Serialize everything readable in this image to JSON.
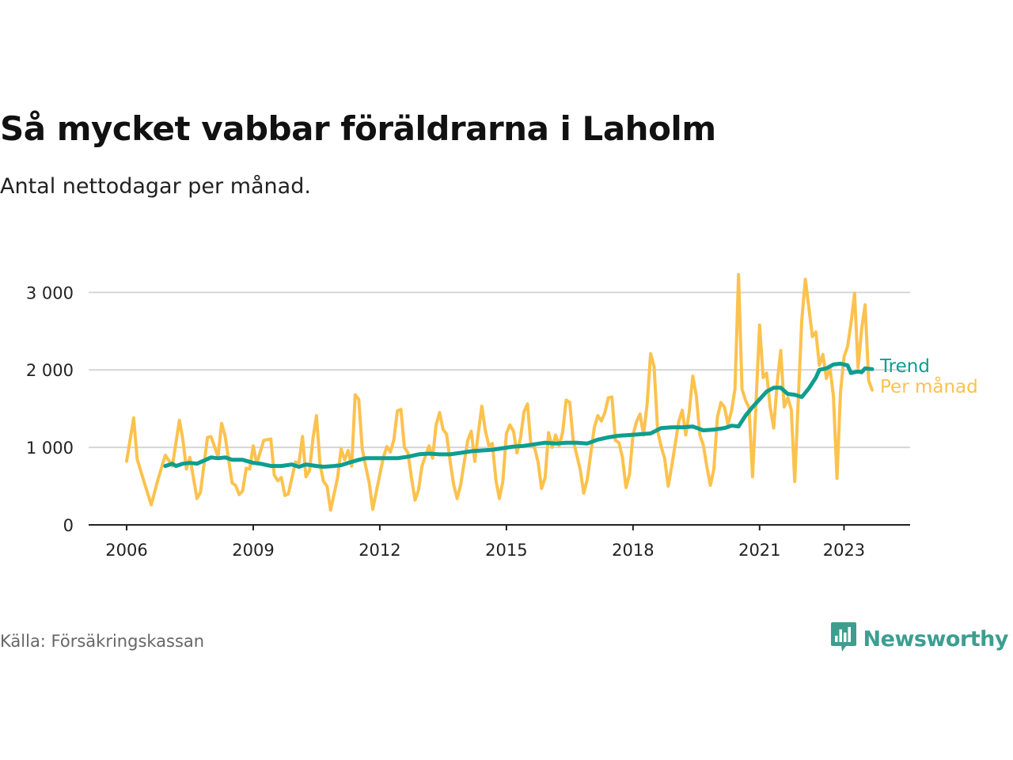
{
  "title": "Så mycket vabbar föräldrarna i Laholm",
  "subtitle": "Antal nettodagar per månad.",
  "source": "Källa: Försäkringskassan",
  "brand": {
    "name": "Newsworthy",
    "icon": "newsworthy-logo-icon",
    "color": "#3d9e90"
  },
  "chart_data": {
    "type": "line",
    "title": "Så mycket vabbar föräldrarna i Laholm",
    "subtitle": "Antal nettodagar per månad.",
    "xlabel": "",
    "ylabel": "",
    "x_ticks": [
      "2006",
      "2009",
      "2012",
      "2015",
      "2018",
      "2021",
      "2023"
    ],
    "y_ticks": [
      "0",
      "1 000",
      "2 000",
      "3 000"
    ],
    "ylim": [
      0,
      3300
    ],
    "xlim": [
      "2006-01",
      "2023-12"
    ],
    "grid": "horizontal",
    "legend": "right-end labels",
    "series": [
      {
        "name": "Per månad",
        "color": "#fcc24e",
        "points": [
          [
            "2006-01",
            820
          ],
          [
            "2006-03",
            1380
          ],
          [
            "2006-04",
            850
          ],
          [
            "2006-06",
            550
          ],
          [
            "2006-08",
            260
          ],
          [
            "2006-10",
            600
          ],
          [
            "2006-12",
            900
          ],
          [
            "2007-02",
            760
          ],
          [
            "2007-04",
            1350
          ],
          [
            "2007-05",
            1100
          ],
          [
            "2007-06",
            720
          ],
          [
            "2007-07",
            870
          ],
          [
            "2007-09",
            340
          ],
          [
            "2007-10",
            420
          ],
          [
            "2007-12",
            1130
          ],
          [
            "2008-01",
            1140
          ],
          [
            "2008-03",
            880
          ],
          [
            "2008-04",
            1310
          ],
          [
            "2008-05",
            1150
          ],
          [
            "2008-07",
            540
          ],
          [
            "2008-08",
            510
          ],
          [
            "2008-09",
            390
          ],
          [
            "2008-10",
            440
          ],
          [
            "2008-11",
            730
          ],
          [
            "2008-12",
            720
          ],
          [
            "2009-01",
            1020
          ],
          [
            "2009-02",
            790
          ],
          [
            "2009-04",
            1090
          ],
          [
            "2009-06",
            1110
          ],
          [
            "2009-07",
            640
          ],
          [
            "2009-08",
            570
          ],
          [
            "2009-09",
            610
          ],
          [
            "2009-10",
            380
          ],
          [
            "2009-11",
            400
          ],
          [
            "2010-01",
            810
          ],
          [
            "2010-02",
            800
          ],
          [
            "2010-03",
            1140
          ],
          [
            "2010-04",
            620
          ],
          [
            "2010-05",
            700
          ],
          [
            "2010-06",
            1120
          ],
          [
            "2010-07",
            1410
          ],
          [
            "2010-08",
            780
          ],
          [
            "2010-09",
            560
          ],
          [
            "2010-10",
            500
          ],
          [
            "2010-11",
            190
          ],
          [
            "2011-01",
            610
          ],
          [
            "2011-02",
            980
          ],
          [
            "2011-03",
            840
          ],
          [
            "2011-04",
            960
          ],
          [
            "2011-05",
            760
          ],
          [
            "2011-06",
            1680
          ],
          [
            "2011-07",
            1620
          ],
          [
            "2011-08",
            980
          ],
          [
            "2011-09",
            750
          ],
          [
            "2011-10",
            540
          ],
          [
            "2011-11",
            200
          ],
          [
            "2011-12",
            430
          ],
          [
            "2012-02",
            870
          ],
          [
            "2012-03",
            1010
          ],
          [
            "2012-04",
            940
          ],
          [
            "2012-05",
            1100
          ],
          [
            "2012-06",
            1470
          ],
          [
            "2012-07",
            1490
          ],
          [
            "2012-08",
            1000
          ],
          [
            "2012-09",
            930
          ],
          [
            "2012-10",
            610
          ],
          [
            "2012-11",
            320
          ],
          [
            "2012-12",
            450
          ],
          [
            "2013-01",
            760
          ],
          [
            "2013-03",
            1020
          ],
          [
            "2013-04",
            860
          ],
          [
            "2013-05",
            1290
          ],
          [
            "2013-06",
            1450
          ],
          [
            "2013-07",
            1230
          ],
          [
            "2013-08",
            1170
          ],
          [
            "2013-09",
            820
          ],
          [
            "2013-10",
            520
          ],
          [
            "2013-11",
            340
          ],
          [
            "2013-12",
            520
          ],
          [
            "2014-02",
            1090
          ],
          [
            "2014-03",
            1210
          ],
          [
            "2014-04",
            820
          ],
          [
            "2014-05",
            1180
          ],
          [
            "2014-06",
            1530
          ],
          [
            "2014-07",
            1220
          ],
          [
            "2014-08",
            1020
          ],
          [
            "2014-09",
            1050
          ],
          [
            "2014-10",
            580
          ],
          [
            "2014-11",
            340
          ],
          [
            "2014-12",
            560
          ],
          [
            "2015-01",
            1180
          ],
          [
            "2015-02",
            1290
          ],
          [
            "2015-03",
            1210
          ],
          [
            "2015-04",
            930
          ],
          [
            "2015-05",
            1120
          ],
          [
            "2015-06",
            1460
          ],
          [
            "2015-07",
            1560
          ],
          [
            "2015-08",
            1010
          ],
          [
            "2015-09",
            1000
          ],
          [
            "2015-10",
            810
          ],
          [
            "2015-11",
            470
          ],
          [
            "2015-12",
            610
          ],
          [
            "2016-01",
            1190
          ],
          [
            "2016-02",
            1000
          ],
          [
            "2016-03",
            1160
          ],
          [
            "2016-04",
            1020
          ],
          [
            "2016-05",
            1200
          ],
          [
            "2016-06",
            1610
          ],
          [
            "2016-07",
            1580
          ],
          [
            "2016-08",
            1090
          ],
          [
            "2016-09",
            900
          ],
          [
            "2016-10",
            710
          ],
          [
            "2016-11",
            410
          ],
          [
            "2016-12",
            590
          ],
          [
            "2017-02",
            1260
          ],
          [
            "2017-03",
            1410
          ],
          [
            "2017-04",
            1340
          ],
          [
            "2017-05",
            1450
          ],
          [
            "2017-06",
            1640
          ],
          [
            "2017-07",
            1650
          ],
          [
            "2017-08",
            1090
          ],
          [
            "2017-09",
            1060
          ],
          [
            "2017-10",
            870
          ],
          [
            "2017-11",
            480
          ],
          [
            "2017-12",
            650
          ],
          [
            "2018-01",
            1160
          ],
          [
            "2018-02",
            1330
          ],
          [
            "2018-03",
            1430
          ],
          [
            "2018-04",
            1160
          ],
          [
            "2018-05",
            1550
          ],
          [
            "2018-06",
            2210
          ],
          [
            "2018-07",
            2040
          ],
          [
            "2018-08",
            1210
          ],
          [
            "2018-09",
            1010
          ],
          [
            "2018-10",
            860
          ],
          [
            "2018-11",
            500
          ],
          [
            "2018-12",
            750
          ],
          [
            "2019-02",
            1330
          ],
          [
            "2019-03",
            1480
          ],
          [
            "2019-04",
            1160
          ],
          [
            "2019-05",
            1460
          ],
          [
            "2019-06",
            1920
          ],
          [
            "2019-07",
            1670
          ],
          [
            "2019-08",
            1160
          ],
          [
            "2019-09",
            1030
          ],
          [
            "2019-10",
            750
          ],
          [
            "2019-11",
            510
          ],
          [
            "2019-12",
            720
          ],
          [
            "2020-01",
            1390
          ],
          [
            "2020-02",
            1580
          ],
          [
            "2020-03",
            1520
          ],
          [
            "2020-04",
            1300
          ],
          [
            "2020-05",
            1470
          ],
          [
            "2020-06",
            1750
          ],
          [
            "2020-07",
            3230
          ],
          [
            "2020-08",
            1750
          ],
          [
            "2020-09",
            1610
          ],
          [
            "2020-10",
            1510
          ],
          [
            "2020-11",
            620
          ],
          [
            "2020-12",
            1600
          ],
          [
            "2021-01",
            2580
          ],
          [
            "2021-02",
            1900
          ],
          [
            "2021-03",
            1960
          ],
          [
            "2021-04",
            1520
          ],
          [
            "2021-05",
            1250
          ],
          [
            "2021-06",
            1830
          ],
          [
            "2021-07",
            2250
          ],
          [
            "2021-08",
            1520
          ],
          [
            "2021-09",
            1640
          ],
          [
            "2021-10",
            1490
          ],
          [
            "2021-11",
            560
          ],
          [
            "2021-12",
            1620
          ],
          [
            "2022-01",
            2640
          ],
          [
            "2022-02",
            3170
          ],
          [
            "2022-03",
            2810
          ],
          [
            "2022-04",
            2430
          ],
          [
            "2022-05",
            2490
          ],
          [
            "2022-06",
            2060
          ],
          [
            "2022-07",
            2200
          ],
          [
            "2022-08",
            1890
          ],
          [
            "2022-09",
            2030
          ],
          [
            "2022-10",
            1660
          ],
          [
            "2022-11",
            600
          ],
          [
            "2022-12",
            1710
          ],
          [
            "2023-01",
            2170
          ],
          [
            "2023-02",
            2300
          ],
          [
            "2023-03",
            2600
          ],
          [
            "2023-04",
            2990
          ],
          [
            "2023-05",
            2030
          ],
          [
            "2023-06",
            2520
          ],
          [
            "2023-07",
            2840
          ],
          [
            "2023-08",
            1860
          ],
          [
            "2023-09",
            1740
          ]
        ]
      },
      {
        "name": "Trend",
        "color": "#0e9e8f",
        "points": [
          [
            "2006-12",
            760
          ],
          [
            "2007-02",
            790
          ],
          [
            "2007-03",
            760
          ],
          [
            "2007-05",
            790
          ],
          [
            "2007-07",
            800
          ],
          [
            "2007-09",
            790
          ],
          [
            "2007-11",
            830
          ],
          [
            "2008-01",
            870
          ],
          [
            "2008-03",
            860
          ],
          [
            "2008-05",
            870
          ],
          [
            "2008-07",
            840
          ],
          [
            "2008-10",
            840
          ],
          [
            "2009-01",
            800
          ],
          [
            "2009-03",
            790
          ],
          [
            "2009-06",
            760
          ],
          [
            "2009-09",
            760
          ],
          [
            "2009-12",
            780
          ],
          [
            "2010-02",
            750
          ],
          [
            "2010-04",
            780
          ],
          [
            "2010-07",
            760
          ],
          [
            "2010-09",
            750
          ],
          [
            "2010-12",
            760
          ],
          [
            "2011-02",
            770
          ],
          [
            "2011-04",
            800
          ],
          [
            "2011-07",
            840
          ],
          [
            "2011-09",
            860
          ],
          [
            "2011-12",
            860
          ],
          [
            "2012-03",
            860
          ],
          [
            "2012-06",
            860
          ],
          [
            "2012-09",
            880
          ],
          [
            "2012-12",
            910
          ],
          [
            "2013-03",
            920
          ],
          [
            "2013-06",
            910
          ],
          [
            "2013-09",
            910
          ],
          [
            "2013-12",
            930
          ],
          [
            "2014-03",
            950
          ],
          [
            "2014-06",
            960
          ],
          [
            "2014-09",
            970
          ],
          [
            "2014-12",
            990
          ],
          [
            "2015-03",
            1010
          ],
          [
            "2015-06",
            1020
          ],
          [
            "2015-09",
            1040
          ],
          [
            "2015-12",
            1060
          ],
          [
            "2016-03",
            1050
          ],
          [
            "2016-06",
            1060
          ],
          [
            "2016-09",
            1060
          ],
          [
            "2016-12",
            1050
          ],
          [
            "2017-03",
            1100
          ],
          [
            "2017-06",
            1130
          ],
          [
            "2017-09",
            1150
          ],
          [
            "2017-12",
            1160
          ],
          [
            "2018-03",
            1170
          ],
          [
            "2018-06",
            1180
          ],
          [
            "2018-09",
            1250
          ],
          [
            "2018-12",
            1260
          ],
          [
            "2019-03",
            1260
          ],
          [
            "2019-06",
            1270
          ],
          [
            "2019-09",
            1220
          ],
          [
            "2019-12",
            1230
          ],
          [
            "2020-03",
            1250
          ],
          [
            "2020-05",
            1280
          ],
          [
            "2020-07",
            1270
          ],
          [
            "2020-09",
            1410
          ],
          [
            "2020-11",
            1520
          ],
          [
            "2021-01",
            1620
          ],
          [
            "2021-03",
            1720
          ],
          [
            "2021-05",
            1770
          ],
          [
            "2021-07",
            1770
          ],
          [
            "2021-09",
            1690
          ],
          [
            "2021-11",
            1680
          ],
          [
            "2022-01",
            1650
          ],
          [
            "2022-03",
            1760
          ],
          [
            "2022-05",
            1900
          ],
          [
            "2022-06",
            2000
          ],
          [
            "2022-08",
            2020
          ],
          [
            "2022-10",
            2070
          ],
          [
            "2022-12",
            2080
          ],
          [
            "2023-02",
            2060
          ],
          [
            "2023-03",
            1960
          ],
          [
            "2023-05",
            1980
          ],
          [
            "2023-06",
            1970
          ],
          [
            "2023-07",
            2020
          ],
          [
            "2023-09",
            2010
          ]
        ]
      }
    ]
  }
}
